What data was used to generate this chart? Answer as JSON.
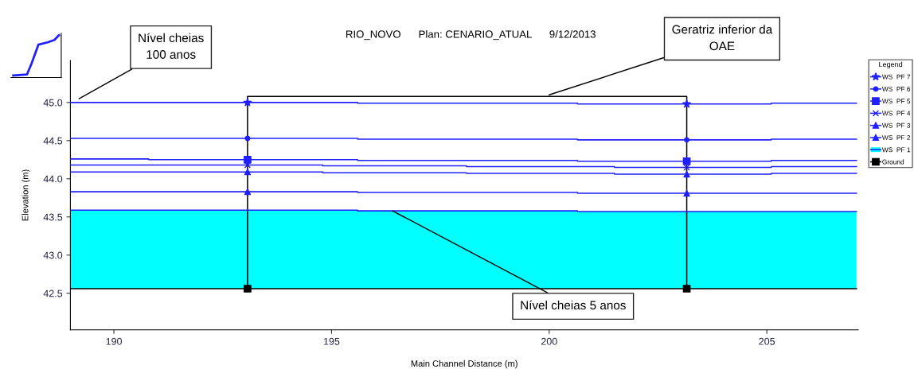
{
  "chart_data": {
    "type": "step",
    "title": "RIO_NOVO      Plan: CENARIO_ATUAL      9/12/2013",
    "xlabel": "Main Channel Distance (m)",
    "ylabel": "Elevation (m)",
    "legend_title": "Legend",
    "xlim": [
      189,
      207.1
    ],
    "ylim": [
      42.02,
      45.55
    ],
    "xticks": [
      190,
      195,
      200,
      205
    ],
    "yticks": [
      {
        "value": 42.5,
        "label": "42.5"
      },
      {
        "value": 43.0,
        "label": "43.0"
      },
      {
        "value": 43.5,
        "label": "43.5"
      },
      {
        "value": 44.0,
        "label": "44.0"
      },
      {
        "value": 44.5,
        "label": "44.5"
      },
      {
        "value": 45.0,
        "label": "45.0"
      }
    ],
    "grid": false,
    "legend": "right",
    "series": [
      {
        "color": "#2020ff",
        "x": [
          189,
          195.6,
          200.65,
          205.1,
          207.06
        ],
        "values": [
          45.0,
          44.99,
          44.98,
          44.99,
          44.99
        ]
      },
      {
        "color": "#2020ff",
        "x": [
          189,
          195.6,
          200.65,
          205.1,
          207.06
        ],
        "values": [
          44.53,
          44.52,
          44.51,
          44.52,
          44.52
        ]
      },
      {
        "color": "#2020ff",
        "x": [
          189,
          190.8,
          195.6,
          200.65,
          205.1,
          207.06
        ],
        "values": [
          44.26,
          44.25,
          44.24,
          44.23,
          44.24,
          44.24
        ]
      },
      {
        "color": "#2020ff",
        "x": [
          189,
          194.8,
          198.1,
          201.5,
          205.1,
          207.06
        ],
        "values": [
          44.18,
          44.17,
          44.16,
          44.15,
          44.16,
          44.16
        ]
      },
      {
        "color": "#2020ff",
        "x": [
          189,
          194.8,
          198.1,
          201.5,
          205.1,
          207.06
        ],
        "values": [
          44.09,
          44.08,
          44.07,
          44.06,
          44.07,
          44.07
        ]
      },
      {
        "color": "#2020ff",
        "x": [
          189,
          195.6,
          200.65,
          207.06
        ],
        "values": [
          43.83,
          43.82,
          43.81,
          43.81
        ]
      },
      {
        "type": "line",
        "color": "#000000",
        "x": [
          189,
          207.06
        ],
        "values": [
          42.56,
          42.56
        ]
      },
      {
        "type": "line",
        "color": "#000000",
        "x": [
          193.07,
          193.07,
          203.16,
          203.16
        ],
        "values": [
          42.56,
          45.08,
          45.08,
          42.56
        ]
      },
      {
        "name": "WS  PF 7",
        "type": "scatter",
        "color": "#2020ff",
        "marker": "star",
        "x": [
          193.07,
          203.16
        ],
        "values": [
          45.0,
          44.98
        ]
      },
      {
        "name": "WS  PF 6",
        "type": "scatter",
        "color": "#2020ff",
        "marker": "circle",
        "x": [
          193.07,
          203.16
        ],
        "values": [
          44.53,
          44.51
        ]
      },
      {
        "name": "WS  PF 5",
        "type": "scatter",
        "color": "#2020ff",
        "marker": "square",
        "x": [
          193.07,
          203.16
        ],
        "values": [
          44.25,
          44.23
        ]
      },
      {
        "name": "WS  PF 4",
        "type": "scatter",
        "color": "#2020ff",
        "marker": "cross",
        "x": [
          193.07,
          203.16
        ],
        "values": [
          44.18,
          44.15
        ]
      },
      {
        "name": "WS  PF 3",
        "type": "scatter",
        "color": "#2020ff",
        "marker": "triangle",
        "x": [
          193.07,
          203.16
        ],
        "values": [
          44.09,
          44.06
        ]
      },
      {
        "name": "WS  PF 2",
        "type": "scatter",
        "color": "#2020ff",
        "marker": "triangle",
        "x": [
          193.07,
          203.16
        ],
        "values": [
          43.83,
          43.81
        ]
      },
      {
        "name": "WS  PF 1",
        "type": "area",
        "color": "#00ffff",
        "x": [
          189,
          195.6,
          200.65,
          207.06
        ],
        "values": [
          43.59,
          43.58,
          43.57,
          43.57
        ]
      },
      {
        "name": "Ground",
        "type": "scatter",
        "color": "#000000",
        "marker": "square",
        "x": [
          193.07,
          203.16
        ],
        "values": [
          42.56,
          42.56
        ]
      }
    ],
    "annotations": [
      {
        "text": "Nível cheias\n100 anos",
        "x": 189.2,
        "y": 45.05
      },
      {
        "text": "Geratriz inferior da\nOAE",
        "x": 200.0,
        "y": 45.1
      },
      {
        "text": "Nível cheias 5 anos",
        "x": 196.4,
        "y": 43.58
      }
    ]
  }
}
